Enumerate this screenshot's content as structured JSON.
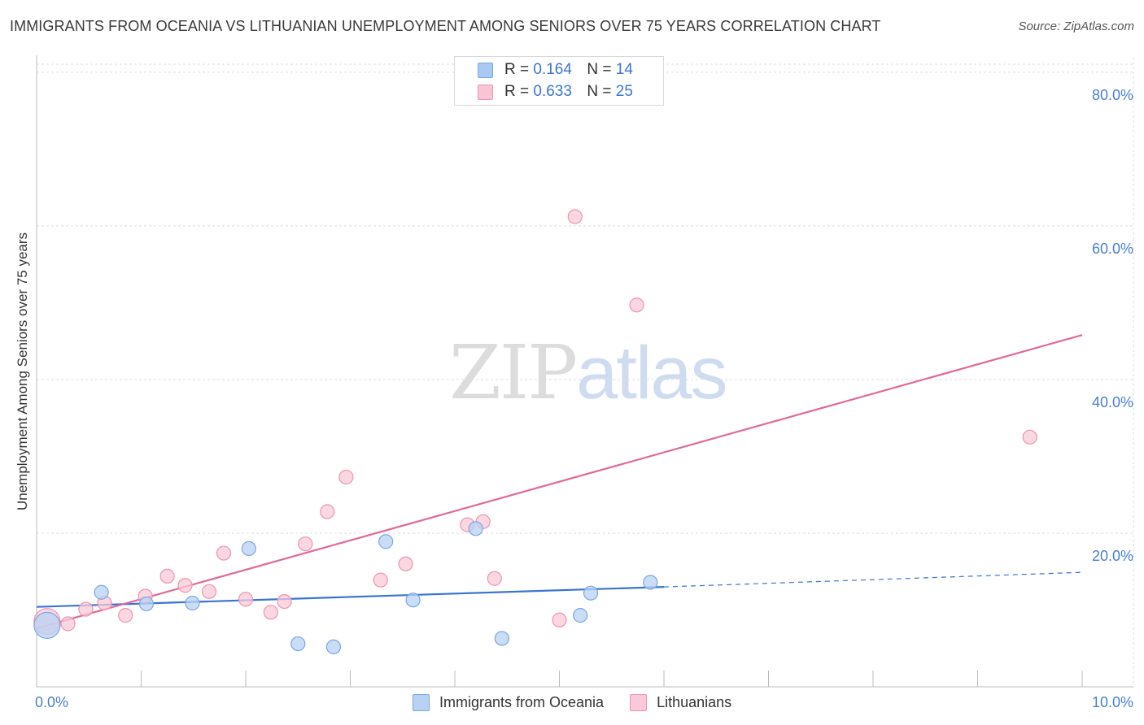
{
  "title": "IMMIGRANTS FROM OCEANIA VS LITHUANIAN UNEMPLOYMENT AMONG SENIORS OVER 75 YEARS CORRELATION CHART",
  "source": "Source: ZipAtlas.com",
  "watermark": {
    "zip": "ZIP",
    "atlas": "atlas"
  },
  "legend": {
    "r_label": "R =",
    "n_label": "N =",
    "rows": [
      {
        "r": "0.164",
        "n": "14",
        "color": "#a9c8f2",
        "border": "#7aa6e0"
      },
      {
        "r": "0.633",
        "n": "25",
        "color": "#f9c4d4",
        "border": "#ee93b0"
      }
    ]
  },
  "bottom_legend": [
    {
      "label": "Immigrants from Oceania",
      "color": "#b8d2f4",
      "border": "#7aa6e0"
    },
    {
      "label": "Lithuanians",
      "color": "#f9c9d7",
      "border": "#ee93b0"
    }
  ],
  "chart_data": {
    "type": "scatter",
    "title": "IMMIGRANTS FROM OCEANIA VS LITHUANIAN UNEMPLOYMENT AMONG SENIORS OVER 75 YEARS CORRELATION CHART",
    "xlabel": "",
    "ylabel": "Unemployment Among Seniors over 75 years",
    "xlim": [
      0,
      10
    ],
    "ylim": [
      0,
      82
    ],
    "x_tick_labels": [
      "0.0%",
      "10.0%"
    ],
    "y_ticks": [
      20,
      40,
      60,
      80
    ],
    "y_tick_labels": [
      "20.0%",
      "40.0%",
      "60.0%",
      "80.0%"
    ],
    "grid": true,
    "series": [
      {
        "name": "Immigrants from Oceania",
        "color": "#7aa6e0",
        "fill": "#b8d2f4",
        "line_color": "#3a74d4",
        "points": [
          {
            "x": 0.1,
            "y": 8.0,
            "size": "large"
          },
          {
            "x": 0.62,
            "y": 12.3
          },
          {
            "x": 1.05,
            "y": 10.8
          },
          {
            "x": 1.49,
            "y": 10.9
          },
          {
            "x": 2.03,
            "y": 18.0
          },
          {
            "x": 2.5,
            "y": 5.6
          },
          {
            "x": 2.84,
            "y": 5.2
          },
          {
            "x": 3.34,
            "y": 18.9
          },
          {
            "x": 3.6,
            "y": 11.3
          },
          {
            "x": 4.2,
            "y": 20.6
          },
          {
            "x": 4.45,
            "y": 6.3
          },
          {
            "x": 5.2,
            "y": 9.3
          },
          {
            "x": 5.3,
            "y": 12.2
          },
          {
            "x": 5.87,
            "y": 13.6
          }
        ],
        "trend": {
          "x0": 0.0,
          "y0": 10.4,
          "x1": 6.0,
          "y1": 13.0,
          "dash_to_x": 10.0,
          "dash_to_y": 14.9
        }
      },
      {
        "name": "Lithuanians",
        "color": "#ee93b0",
        "fill": "#f9c9d7",
        "line_color": "#e0699a",
        "points": [
          {
            "x": 0.1,
            "y": 8.5,
            "size": "large"
          },
          {
            "x": 0.3,
            "y": 8.2
          },
          {
            "x": 0.47,
            "y": 10.1
          },
          {
            "x": 0.65,
            "y": 10.9
          },
          {
            "x": 0.85,
            "y": 9.3
          },
          {
            "x": 1.04,
            "y": 11.8
          },
          {
            "x": 1.25,
            "y": 14.4
          },
          {
            "x": 1.42,
            "y": 13.2
          },
          {
            "x": 1.65,
            "y": 12.4
          },
          {
            "x": 1.79,
            "y": 17.4
          },
          {
            "x": 2.0,
            "y": 11.4
          },
          {
            "x": 2.24,
            "y": 9.7
          },
          {
            "x": 2.37,
            "y": 11.1
          },
          {
            "x": 2.57,
            "y": 18.6
          },
          {
            "x": 2.78,
            "y": 22.8
          },
          {
            "x": 2.96,
            "y": 27.3
          },
          {
            "x": 3.29,
            "y": 13.9
          },
          {
            "x": 3.53,
            "y": 16.0
          },
          {
            "x": 4.12,
            "y": 21.1
          },
          {
            "x": 4.27,
            "y": 21.5
          },
          {
            "x": 4.38,
            "y": 14.1
          },
          {
            "x": 5.0,
            "y": 8.7
          },
          {
            "x": 5.15,
            "y": 61.2
          },
          {
            "x": 5.74,
            "y": 49.7
          },
          {
            "x": 9.5,
            "y": 32.5
          }
        ],
        "trend": {
          "x0": 0.0,
          "y0": 7.6,
          "x1": 10.0,
          "y1": 45.8
        }
      }
    ]
  }
}
